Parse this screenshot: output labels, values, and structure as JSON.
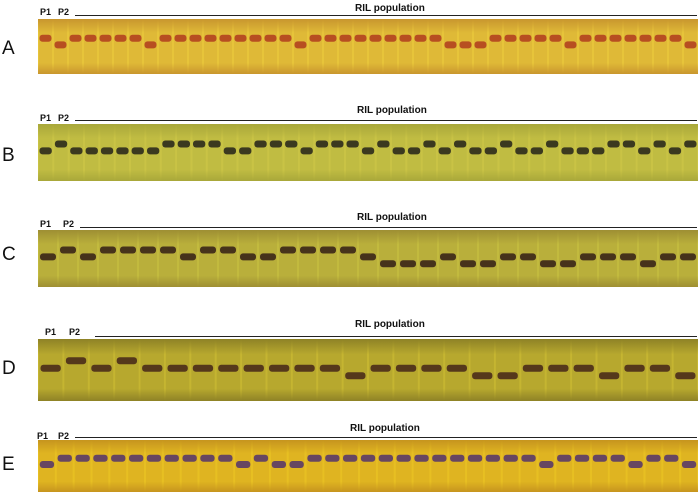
{
  "panels": [
    {
      "letter": "A",
      "p1": "P1",
      "p2": "P2",
      "title": "RIL population",
      "band_rows": [
        1,
        2,
        1,
        1,
        1,
        1,
        1,
        2,
        1,
        1,
        1,
        1,
        1,
        1,
        1,
        1,
        1,
        2,
        1,
        1,
        1,
        1,
        1,
        1,
        1,
        1,
        1,
        2,
        2,
        2,
        1,
        1,
        1,
        1,
        1,
        2,
        1,
        1,
        1,
        1,
        1,
        1,
        1,
        2
      ],
      "gel_colors": [
        "#e7c43a",
        "#c9962e",
        "#b2421f"
      ]
    },
    {
      "letter": "B",
      "p1": "P1",
      "p2": "P2",
      "title": "RIL population",
      "band_rows": [
        2,
        1,
        2,
        2,
        2,
        2,
        2,
        2,
        1,
        1,
        1,
        1,
        2,
        2,
        1,
        1,
        1,
        2,
        1,
        1,
        1,
        2,
        1,
        2,
        2,
        1,
        2,
        1,
        2,
        2,
        1,
        2,
        2,
        1,
        2,
        2,
        2,
        1,
        1,
        2,
        1,
        2,
        1
      ],
      "gel_colors": [
        "#c9c345",
        "#a9a83a",
        "#2c2a1c"
      ]
    },
    {
      "letter": "C",
      "p1": "P1",
      "p2": "P2",
      "title": "RIL population",
      "band_rows": [
        2,
        1,
        2,
        1,
        1,
        1,
        1,
        2,
        1,
        1,
        2,
        2,
        1,
        1,
        1,
        1,
        2,
        3,
        3,
        3,
        2,
        3,
        3,
        2,
        2,
        3,
        3,
        2,
        2,
        2,
        3,
        2,
        2
      ],
      "gel_colors": [
        "#c2ba3e",
        "#9e8f33",
        "#3a2618"
      ]
    },
    {
      "letter": "D",
      "p1": "P1",
      "p2": "P2",
      "title": "RIL population",
      "band_rows": [
        2,
        1,
        2,
        1,
        2,
        2,
        2,
        2,
        2,
        2,
        2,
        2,
        3,
        2,
        2,
        2,
        2,
        3,
        3,
        2,
        2,
        2,
        3,
        2,
        2,
        3
      ],
      "gel_colors": [
        "#c5b531",
        "#8e8226",
        "#4a2b19"
      ]
    },
    {
      "letter": "E",
      "p1": "P1",
      "p2": "P2",
      "title": "RIL population",
      "band_rows": [
        2,
        1,
        1,
        1,
        1,
        1,
        1,
        1,
        1,
        1,
        1,
        2,
        1,
        2,
        2,
        1,
        1,
        1,
        1,
        1,
        1,
        1,
        1,
        1,
        1,
        1,
        1,
        1,
        2,
        1,
        1,
        1,
        1,
        2,
        1,
        1,
        2
      ],
      "gel_colors": [
        "#e7bf22",
        "#c6951e",
        "#5a3a68"
      ]
    }
  ]
}
